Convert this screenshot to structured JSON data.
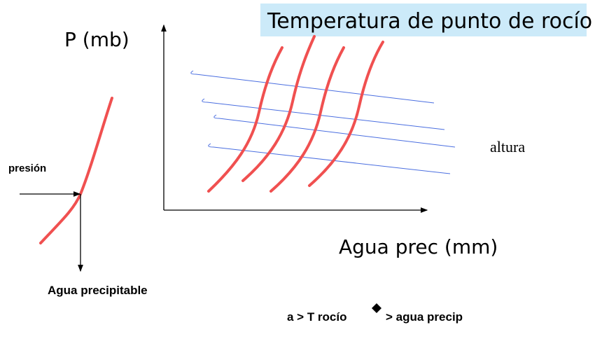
{
  "title": "Temperatura de punto de rocío",
  "main_plot": {
    "y_axis_label": "P (mb)",
    "x_axis_label": "Agua prec (mm)",
    "line_label": "altura"
  },
  "small_plot": {
    "y_label": "presión",
    "x_label": "Agua precipitable"
  },
  "footer": {
    "left": "a > T rocío",
    "right": "> agua precip"
  }
}
